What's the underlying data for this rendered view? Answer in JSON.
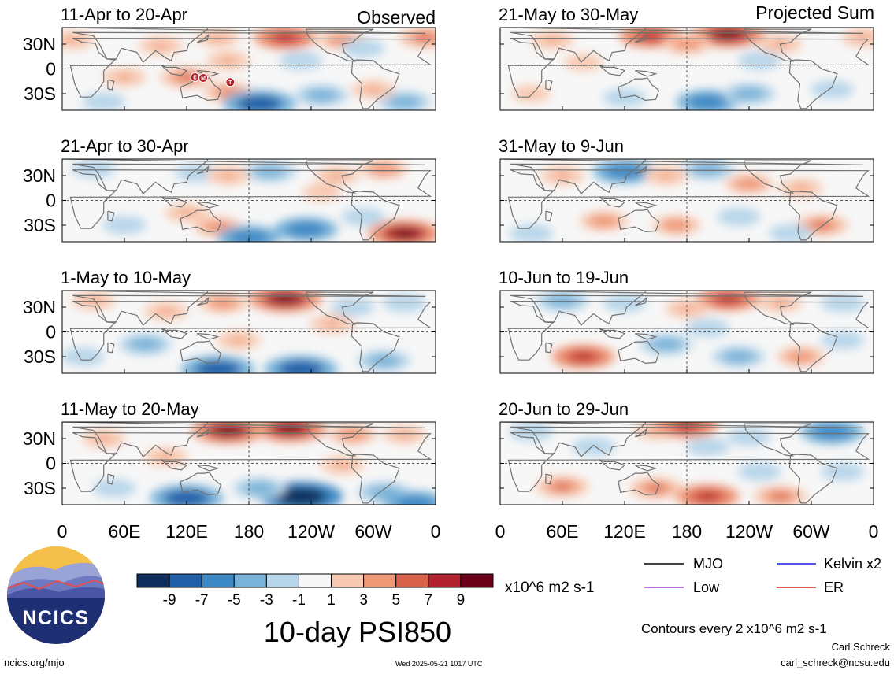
{
  "figure": {
    "title": "10-day PSI850",
    "unit_label": "x10^6 m2 s-1",
    "contours_note": "Contours every 2 x10^6 m2 s-1",
    "footer_left": "ncics.org/mjo",
    "footer_center": "Wed 2025-05-21 1017 UTC",
    "author": "Carl Schreck",
    "email": "carl_schreck@ncsu.edu",
    "logo_text": "NCICS"
  },
  "columns": [
    {
      "header": "Observed"
    },
    {
      "header": "Projected Sum"
    }
  ],
  "legend": [
    {
      "label": "MJO",
      "color": "#000000"
    },
    {
      "label": "Kelvin x2",
      "color": "#1f1fe0"
    },
    {
      "label": "Low",
      "color": "#a040e0"
    },
    {
      "label": "ER",
      "color": "#e02020"
    }
  ],
  "chart_data": {
    "type": "heatmap",
    "variable": "10-day PSI850",
    "units": "x10^6 m2 s-1",
    "colorbar": {
      "ticks": [
        "-9",
        "-7",
        "-5",
        "-3",
        "-1",
        "1",
        "3",
        "5",
        "7",
        "9"
      ],
      "levels": [
        -11,
        -9,
        -7,
        -5,
        -3,
        -1,
        1,
        3,
        5,
        7,
        9,
        11
      ],
      "colors": [
        "#0d2d5e",
        "#1f5fa8",
        "#3c88c4",
        "#78b2d8",
        "#b8d6ea",
        "#f7f7f7",
        "#f8c9b1",
        "#ef9878",
        "#d9604b",
        "#b3202e",
        "#6b0019"
      ]
    },
    "x_ticks": [
      "0",
      "60E",
      "120E",
      "180",
      "120W",
      "60W",
      "0"
    ],
    "y_ticks": [
      "30N",
      "0",
      "30S"
    ],
    "panels": [
      {
        "period": "11-Apr to 20-Apr",
        "col": 0,
        "row": 0,
        "features": [
          {
            "lon": 150,
            "lat": 38,
            "value": 3
          },
          {
            "lon": 215,
            "lat": 38,
            "value": 7
          },
          {
            "lon": 270,
            "lat": 35,
            "value": 4
          },
          {
            "lon": 350,
            "lat": 38,
            "value": 5
          },
          {
            "lon": 10,
            "lat": 35,
            "value": 3
          },
          {
            "lon": 95,
            "lat": 28,
            "value": 3
          },
          {
            "lon": 160,
            "lat": 10,
            "value": 3
          },
          {
            "lon": 230,
            "lat": 10,
            "value": -3
          },
          {
            "lon": 290,
            "lat": 25,
            "value": -3
          },
          {
            "lon": 120,
            "lat": -10,
            "value": 5
          },
          {
            "lon": 60,
            "lat": -10,
            "value": 3
          },
          {
            "lon": 160,
            "lat": -28,
            "value": 4
          },
          {
            "lon": 190,
            "lat": -42,
            "value": -9
          },
          {
            "lon": 250,
            "lat": -32,
            "value": -5
          },
          {
            "lon": 330,
            "lat": -40,
            "value": -5
          },
          {
            "lon": 40,
            "lat": -40,
            "value": -3
          },
          {
            "lon": 300,
            "lat": -25,
            "value": 3
          }
        ],
        "markers": [
          {
            "lon": 128,
            "lat": -10,
            "label": "E"
          },
          {
            "lon": 136,
            "lat": -11,
            "label": "M"
          },
          {
            "lon": 162,
            "lat": -16,
            "label": "T"
          }
        ]
      },
      {
        "period": "21-Apr to 30-Apr",
        "col": 0,
        "row": 1,
        "features": [
          {
            "lon": 200,
            "lat": 35,
            "value": -5
          },
          {
            "lon": 130,
            "lat": 33,
            "value": -3
          },
          {
            "lon": 265,
            "lat": 30,
            "value": 3
          },
          {
            "lon": 310,
            "lat": 38,
            "value": 4
          },
          {
            "lon": 160,
            "lat": 30,
            "value": 3
          },
          {
            "lon": 30,
            "lat": 38,
            "value": -3
          },
          {
            "lon": 120,
            "lat": -15,
            "value": 3
          },
          {
            "lon": 60,
            "lat": -30,
            "value": -3
          },
          {
            "lon": 150,
            "lat": -32,
            "value": 4
          },
          {
            "lon": 180,
            "lat": -45,
            "value": -7
          },
          {
            "lon": 235,
            "lat": -35,
            "value": -7
          },
          {
            "lon": 290,
            "lat": -20,
            "value": -3
          },
          {
            "lon": 330,
            "lat": -40,
            "value": 9
          },
          {
            "lon": 250,
            "lat": 10,
            "value": 2
          }
        ],
        "markers": []
      },
      {
        "period": "1-May to 10-May",
        "col": 0,
        "row": 2,
        "features": [
          {
            "lon": 215,
            "lat": 40,
            "value": 9
          },
          {
            "lon": 155,
            "lat": 35,
            "value": 4
          },
          {
            "lon": 100,
            "lat": 25,
            "value": 3
          },
          {
            "lon": 30,
            "lat": 38,
            "value": 3
          },
          {
            "lon": 280,
            "lat": 30,
            "value": -3
          },
          {
            "lon": 330,
            "lat": 35,
            "value": -3
          },
          {
            "lon": 260,
            "lat": 10,
            "value": 3
          },
          {
            "lon": 80,
            "lat": -15,
            "value": -5
          },
          {
            "lon": 150,
            "lat": -45,
            "value": -9
          },
          {
            "lon": 230,
            "lat": -45,
            "value": -9
          },
          {
            "lon": 310,
            "lat": -35,
            "value": -5
          },
          {
            "lon": 20,
            "lat": -30,
            "value": -3
          },
          {
            "lon": 170,
            "lat": -10,
            "value": 3
          }
        ],
        "markers": []
      },
      {
        "period": "11-May to 20-May",
        "col": 0,
        "row": 3,
        "features": [
          {
            "lon": 160,
            "lat": 40,
            "value": 9
          },
          {
            "lon": 220,
            "lat": 42,
            "value": 9
          },
          {
            "lon": 280,
            "lat": 35,
            "value": 4
          },
          {
            "lon": 40,
            "lat": 30,
            "value": 3
          },
          {
            "lon": 330,
            "lat": 35,
            "value": 3
          },
          {
            "lon": 100,
            "lat": 8,
            "value": 3
          },
          {
            "lon": 270,
            "lat": -2,
            "value": 3
          },
          {
            "lon": 120,
            "lat": -42,
            "value": -9
          },
          {
            "lon": 230,
            "lat": -40,
            "value": -11
          },
          {
            "lon": 190,
            "lat": -30,
            "value": -5
          },
          {
            "lon": 50,
            "lat": -30,
            "value": -3
          },
          {
            "lon": 310,
            "lat": -35,
            "value": -5
          },
          {
            "lon": 340,
            "lat": -48,
            "value": -7
          }
        ],
        "markers": []
      },
      {
        "period": "21-May to 30-May",
        "col": 1,
        "row": 0,
        "features": [
          {
            "lon": 145,
            "lat": 40,
            "value": 7
          },
          {
            "lon": 220,
            "lat": 42,
            "value": 9
          },
          {
            "lon": 180,
            "lat": 30,
            "value": 4
          },
          {
            "lon": 270,
            "lat": 30,
            "value": 3
          },
          {
            "lon": 50,
            "lat": 35,
            "value": 3
          },
          {
            "lon": 350,
            "lat": 38,
            "value": 3
          },
          {
            "lon": 250,
            "lat": 10,
            "value": -3
          },
          {
            "lon": 80,
            "lat": 8,
            "value": 2
          },
          {
            "lon": 200,
            "lat": -40,
            "value": -7
          },
          {
            "lon": 240,
            "lat": -30,
            "value": -5
          },
          {
            "lon": 120,
            "lat": -35,
            "value": -3
          },
          {
            "lon": 320,
            "lat": -25,
            "value": -3
          },
          {
            "lon": 30,
            "lat": -30,
            "value": 2
          }
        ],
        "markers": []
      },
      {
        "period": "31-May to 9-Jun",
        "col": 1,
        "row": 1,
        "features": [
          {
            "lon": 120,
            "lat": 35,
            "value": -7
          },
          {
            "lon": 200,
            "lat": 38,
            "value": -5
          },
          {
            "lon": 160,
            "lat": 30,
            "value": 3
          },
          {
            "lon": 240,
            "lat": 20,
            "value": 4
          },
          {
            "lon": 290,
            "lat": 15,
            "value": 3
          },
          {
            "lon": 60,
            "lat": 30,
            "value": 3
          },
          {
            "lon": 100,
            "lat": -25,
            "value": 4
          },
          {
            "lon": 170,
            "lat": -30,
            "value": 4
          },
          {
            "lon": 230,
            "lat": -20,
            "value": -3
          },
          {
            "lon": 310,
            "lat": -30,
            "value": 5
          },
          {
            "lon": 30,
            "lat": -40,
            "value": -3
          },
          {
            "lon": 280,
            "lat": -40,
            "value": -3
          }
        ],
        "markers": []
      },
      {
        "period": "10-Jun to 19-Jun",
        "col": 1,
        "row": 2,
        "features": [
          {
            "lon": 220,
            "lat": 40,
            "value": 7
          },
          {
            "lon": 270,
            "lat": 35,
            "value": 3
          },
          {
            "lon": 60,
            "lat": 38,
            "value": -5
          },
          {
            "lon": 120,
            "lat": 35,
            "value": -3
          },
          {
            "lon": 180,
            "lat": 28,
            "value": 3
          },
          {
            "lon": 330,
            "lat": 35,
            "value": -3
          },
          {
            "lon": 80,
            "lat": -30,
            "value": 7
          },
          {
            "lon": 160,
            "lat": -15,
            "value": -5
          },
          {
            "lon": 230,
            "lat": -30,
            "value": -5
          },
          {
            "lon": 290,
            "lat": -30,
            "value": 4
          },
          {
            "lon": 330,
            "lat": -10,
            "value": -3
          },
          {
            "lon": 200,
            "lat": 5,
            "value": -3
          }
        ],
        "markers": []
      },
      {
        "period": "20-Jun to 29-Jun",
        "col": 1,
        "row": 3,
        "features": [
          {
            "lon": 30,
            "lat": 38,
            "value": -3
          },
          {
            "lon": 150,
            "lat": 40,
            "value": 3
          },
          {
            "lon": 180,
            "lat": 45,
            "value": 7
          },
          {
            "lon": 240,
            "lat": 32,
            "value": -3
          },
          {
            "lon": 320,
            "lat": 38,
            "value": -7
          },
          {
            "lon": 90,
            "lat": 20,
            "value": -3
          },
          {
            "lon": 200,
            "lat": 20,
            "value": -3
          },
          {
            "lon": 60,
            "lat": -28,
            "value": 5
          },
          {
            "lon": 150,
            "lat": -30,
            "value": 5
          },
          {
            "lon": 200,
            "lat": -40,
            "value": 7
          },
          {
            "lon": 270,
            "lat": -40,
            "value": 5
          },
          {
            "lon": 250,
            "lat": -10,
            "value": -3
          },
          {
            "lon": 330,
            "lat": -10,
            "value": -3
          }
        ],
        "markers": []
      }
    ]
  }
}
